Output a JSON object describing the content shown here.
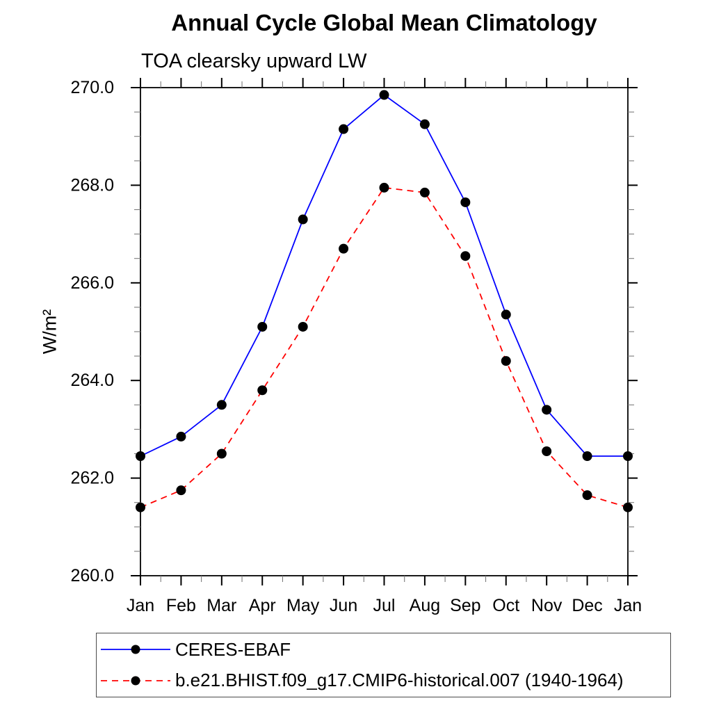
{
  "title": "Annual Cycle Global Mean Climatology",
  "subtitle": "TOA clearsky upward LW",
  "chart_data": {
    "type": "line",
    "title": "Annual Cycle Global Mean Climatology",
    "subtitle": "TOA clearsky upward LW",
    "xlabel": "",
    "ylabel": "W/m²",
    "x_categories": [
      "Jan",
      "Feb",
      "Mar",
      "Apr",
      "May",
      "Jun",
      "Jul",
      "Aug",
      "Sep",
      "Oct",
      "Nov",
      "Dec",
      "Jan"
    ],
    "ylim": [
      260.0,
      270.0
    ],
    "ytick_major_values": [
      260.0,
      262.0,
      264.0,
      266.0,
      268.0,
      270.0
    ],
    "ytick_labels": [
      "260.0",
      "262.0",
      "264.0",
      "266.0",
      "268.0",
      "270.0"
    ],
    "ytick_minor_step": 0.5,
    "xtick_minor_step": 0.5,
    "grid": false,
    "legend_position": "bottom-left-box",
    "marker": "filled-circle",
    "marker_color": "#000000",
    "series": [
      {
        "name": "CERES-EBAF",
        "color": "#0000ff",
        "line_style": "solid",
        "values": [
          262.45,
          262.85,
          263.5,
          265.1,
          267.3,
          269.15,
          269.85,
          269.25,
          267.65,
          265.35,
          263.4,
          262.45,
          262.45
        ]
      },
      {
        "name": "b.e21.BHIST.f09_g17.CMIP6-historical.007 (1940-1964)",
        "color": "#ff0000",
        "line_style": "dashed",
        "values": [
          261.4,
          261.75,
          262.5,
          263.8,
          265.1,
          266.7,
          267.95,
          267.85,
          266.55,
          264.4,
          262.55,
          261.65,
          261.4
        ]
      }
    ]
  },
  "legend": {
    "entries": [
      {
        "label": "CERES-EBAF"
      },
      {
        "label": "b.e21.BHIST.f09_g17.CMIP6-historical.007 (1940-1964)"
      }
    ]
  }
}
